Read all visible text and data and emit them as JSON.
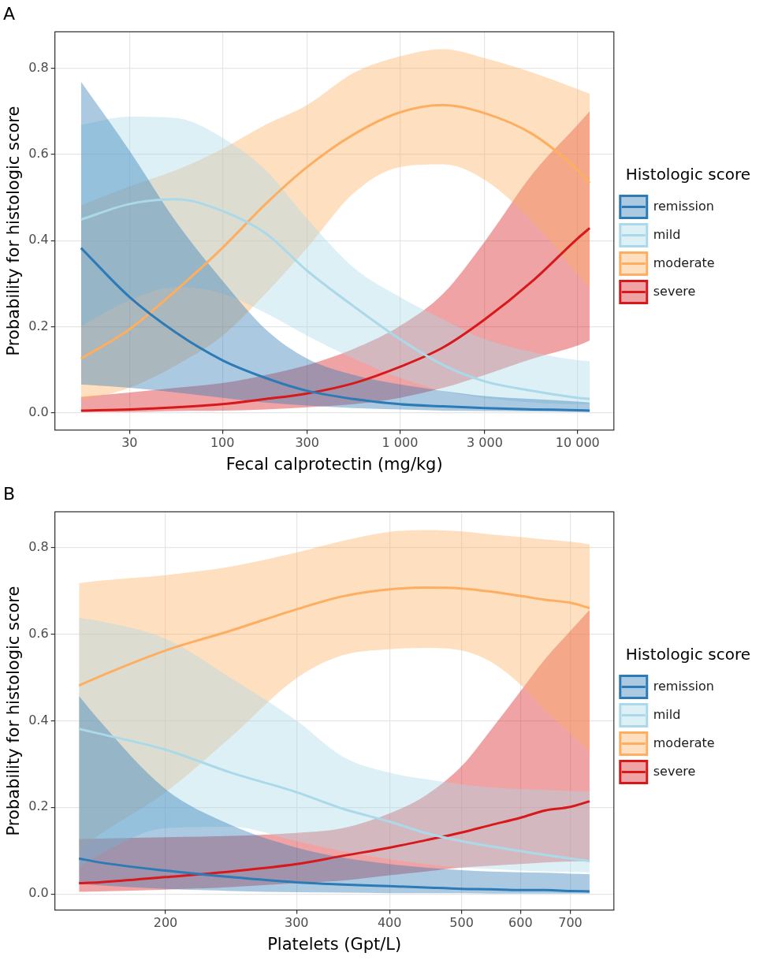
{
  "chart_data": [
    {
      "type": "line",
      "title": "A",
      "xlabel": "Fecal calprotectin (mg/kg)",
      "ylabel": "Probability for histologic score",
      "legend_title": "Histologic score",
      "log": "x",
      "grid": true,
      "legend": "right",
      "x": [
        16,
        30,
        55,
        100,
        175,
        300,
        550,
        1000,
        1750,
        3000,
        5600,
        10000,
        11700
      ],
      "xlim": [
        11.4,
        16000
      ],
      "xticks": [
        30,
        100,
        300,
        {
          "value": 1000,
          "label": "1 000"
        },
        {
          "value": 3000,
          "label": "3 000"
        },
        {
          "value": 10000,
          "label": "10 000"
        }
      ],
      "ylim": [
        -0.04,
        0.885
      ],
      "yticks": [
        {
          "value": 0,
          "label": "0.0"
        },
        0.2,
        0.4,
        0.6,
        0.8
      ],
      "series": [
        {
          "name": "remission",
          "color": "#2c7bb6",
          "values": [
            0.383,
            0.269,
            0.186,
            0.122,
            0.081,
            0.051,
            0.032,
            0.02,
            0.015,
            0.011,
            0.008,
            0.006,
            0.005
          ],
          "lower": [
            0.066,
            0.058,
            0.047,
            0.035,
            0.024,
            0.017,
            0.011,
            0.008,
            0.005,
            0.004,
            0.003,
            0.002,
            0.002
          ],
          "upper": [
            0.769,
            0.609,
            0.443,
            0.307,
            0.194,
            0.126,
            0.088,
            0.066,
            0.051,
            0.039,
            0.032,
            0.026,
            0.024
          ]
        },
        {
          "name": "mild",
          "color": "#abd9e9",
          "values": [
            0.449,
            0.485,
            0.496,
            0.469,
            0.417,
            0.33,
            0.247,
            0.171,
            0.111,
            0.073,
            0.051,
            0.035,
            0.032
          ],
          "lower": [
            0.202,
            0.262,
            0.292,
            0.277,
            0.232,
            0.179,
            0.126,
            0.081,
            0.051,
            0.035,
            0.024,
            0.02,
            0.02
          ],
          "upper": [
            0.669,
            0.688,
            0.685,
            0.639,
            0.564,
            0.451,
            0.337,
            0.269,
            0.217,
            0.171,
            0.141,
            0.122,
            0.12
          ]
        },
        {
          "name": "moderate",
          "color": "#fdae61",
          "values": [
            0.126,
            0.194,
            0.285,
            0.383,
            0.485,
            0.571,
            0.647,
            0.698,
            0.715,
            0.696,
            0.647,
            0.564,
            0.534
          ],
          "lower": [
            0.028,
            0.058,
            0.111,
            0.179,
            0.277,
            0.383,
            0.511,
            0.571,
            0.577,
            0.541,
            0.443,
            0.322,
            0.288
          ],
          "upper": [
            0.482,
            0.526,
            0.564,
            0.613,
            0.669,
            0.715,
            0.79,
            0.828,
            0.845,
            0.824,
            0.79,
            0.752,
            0.741
          ]
        },
        {
          "name": "severe",
          "color": "#d7191c",
          "values": [
            0.005,
            0.008,
            0.013,
            0.02,
            0.032,
            0.045,
            0.069,
            0.107,
            0.152,
            0.217,
            0.307,
            0.405,
            0.429
          ],
          "lower": [
            0.002,
            0.002,
            0.004,
            0.005,
            0.008,
            0.013,
            0.02,
            0.035,
            0.058,
            0.088,
            0.126,
            0.156,
            0.168
          ],
          "upper": [
            0.037,
            0.047,
            0.058,
            0.069,
            0.088,
            0.111,
            0.149,
            0.202,
            0.277,
            0.398,
            0.556,
            0.669,
            0.701
          ]
        }
      ]
    },
    {
      "type": "line",
      "title": "B",
      "xlabel": "Platelets (Gpt/L)",
      "ylabel": "Probability for histologic score",
      "legend_title": "Histologic score",
      "log": "x",
      "grid": true,
      "legend": "right",
      "x": [
        153,
        163,
        200,
        245,
        300,
        346,
        400,
        447,
        500,
        547,
        600,
        648,
        700,
        743
      ],
      "xlim": [
        142,
        801
      ],
      "xticks": [
        200,
        300,
        400,
        500,
        600,
        700
      ],
      "ylim": [
        -0.037,
        0.882
      ],
      "yticks": [
        {
          "value": 0,
          "label": "0.0"
        },
        0.2,
        0.4,
        0.6,
        0.8
      ],
      "series": [
        {
          "name": "remission",
          "color": "#2c7bb6",
          "values": [
            0.082,
            0.073,
            0.054,
            0.039,
            0.027,
            0.022,
            0.018,
            0.015,
            0.012,
            0.011,
            0.009,
            0.009,
            0.007,
            0.006
          ],
          "lower": [
            0.024,
            0.02,
            0.012,
            0.007,
            0.004,
            0.003,
            0.002,
            0.002,
            0.002,
            0.001,
            0.001,
            0.001,
            0.001,
            0.001
          ],
          "upper": [
            0.457,
            0.4,
            0.242,
            0.159,
            0.107,
            0.084,
            0.069,
            0.061,
            0.055,
            0.052,
            0.05,
            0.049,
            0.047,
            0.046
          ]
        },
        {
          "name": "mild",
          "color": "#abd9e9",
          "values": [
            0.381,
            0.37,
            0.333,
            0.28,
            0.235,
            0.197,
            0.167,
            0.141,
            0.122,
            0.11,
            0.099,
            0.09,
            0.082,
            0.076
          ],
          "lower": [
            0.061,
            0.091,
            0.152,
            0.155,
            0.122,
            0.099,
            0.08,
            0.069,
            0.061,
            0.058,
            0.054,
            0.052,
            0.051,
            0.05
          ],
          "upper": [
            0.637,
            0.63,
            0.589,
            0.498,
            0.4,
            0.317,
            0.28,
            0.265,
            0.253,
            0.246,
            0.242,
            0.24,
            0.238,
            0.236
          ]
        },
        {
          "name": "moderate",
          "color": "#fdae61",
          "values": [
            0.481,
            0.502,
            0.562,
            0.608,
            0.657,
            0.687,
            0.703,
            0.707,
            0.705,
            0.698,
            0.688,
            0.679,
            0.672,
            0.66
          ],
          "lower": [
            0.103,
            0.137,
            0.235,
            0.363,
            0.498,
            0.551,
            0.565,
            0.568,
            0.562,
            0.536,
            0.483,
            0.423,
            0.37,
            0.329
          ],
          "upper": [
            0.717,
            0.723,
            0.736,
            0.756,
            0.788,
            0.815,
            0.836,
            0.84,
            0.837,
            0.83,
            0.824,
            0.818,
            0.813,
            0.807
          ]
        },
        {
          "name": "severe",
          "color": "#d7191c",
          "values": [
            0.025,
            0.027,
            0.039,
            0.052,
            0.069,
            0.088,
            0.107,
            0.124,
            0.142,
            0.159,
            0.176,
            0.193,
            0.201,
            0.214
          ],
          "lower": [
            0.005,
            0.006,
            0.01,
            0.016,
            0.025,
            0.031,
            0.043,
            0.052,
            0.061,
            0.065,
            0.069,
            0.073,
            0.075,
            0.076
          ],
          "upper": [
            0.127,
            0.128,
            0.131,
            0.134,
            0.141,
            0.152,
            0.186,
            0.227,
            0.295,
            0.378,
            0.468,
            0.543,
            0.607,
            0.656
          ]
        }
      ]
    }
  ]
}
